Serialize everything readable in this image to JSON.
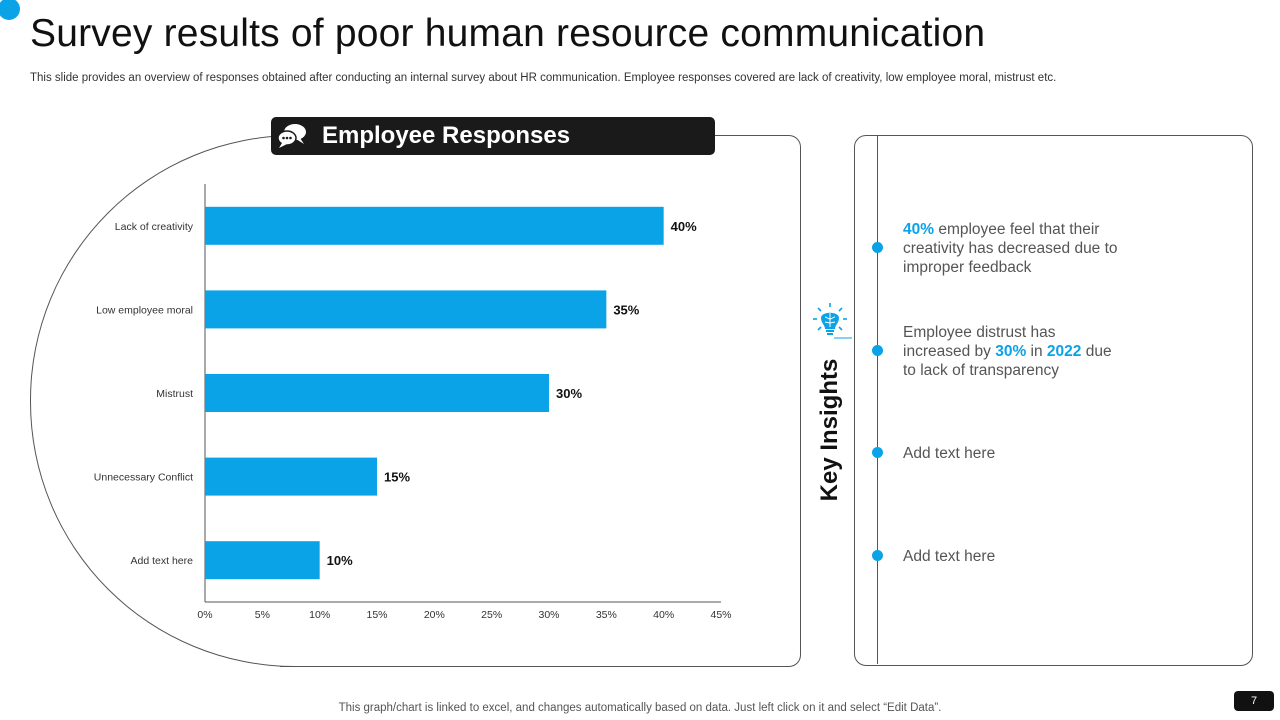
{
  "slide": {
    "title": "Survey results of poor human resource communication",
    "subtitle": "This slide provides an overview of responses obtained after conducting an internal survey about HR communication. Employee responses covered are lack of creativity,  low employee moral, mistrust etc.",
    "footer": "This graph/chart is linked to excel,  and changes automatically based on data. Just left click on it and select “Edit Data”.",
    "page_number": "7",
    "accent_color": "#0aa3e8"
  },
  "responses_panel": {
    "title": "Employee Responses",
    "icon": "chat-bubbles-icon"
  },
  "chart_data": {
    "type": "bar",
    "orientation": "horizontal",
    "title": "Employee Responses",
    "categories": [
      "Lack of creativity",
      "Low employee moral",
      "Mistrust",
      "Unnecessary Conflict",
      "Add text here"
    ],
    "values": [
      40,
      35,
      30,
      15,
      10
    ],
    "data_labels": [
      "40%",
      "35%",
      "30%",
      "15%",
      "10%"
    ],
    "x_ticks": [
      "0%",
      "5%",
      "10%",
      "15%",
      "20%",
      "25%",
      "30%",
      "35%",
      "40%",
      "45%"
    ],
    "xlim": [
      0,
      45
    ],
    "xlabel": "",
    "ylabel": "",
    "grid": false,
    "bar_color": "#0aa3e8"
  },
  "insights": {
    "heading": "Key Insights",
    "icon": "brain-lightbulb-icon",
    "items": [
      {
        "pre": "",
        "h1": "40%",
        "mid": " employee feel that their creativity has decreased due to improper feedback",
        "h2": "",
        "post": ""
      },
      {
        "pre": "Employee distrust has increased by ",
        "h1": "30%",
        "mid": " in ",
        "h2": "2022",
        "post": " due to lack of transparency"
      },
      {
        "pre": "Add text here",
        "h1": "",
        "mid": "",
        "h2": "",
        "post": ""
      },
      {
        "pre": "Add text here",
        "h1": "",
        "mid": "",
        "h2": "",
        "post": ""
      }
    ]
  }
}
